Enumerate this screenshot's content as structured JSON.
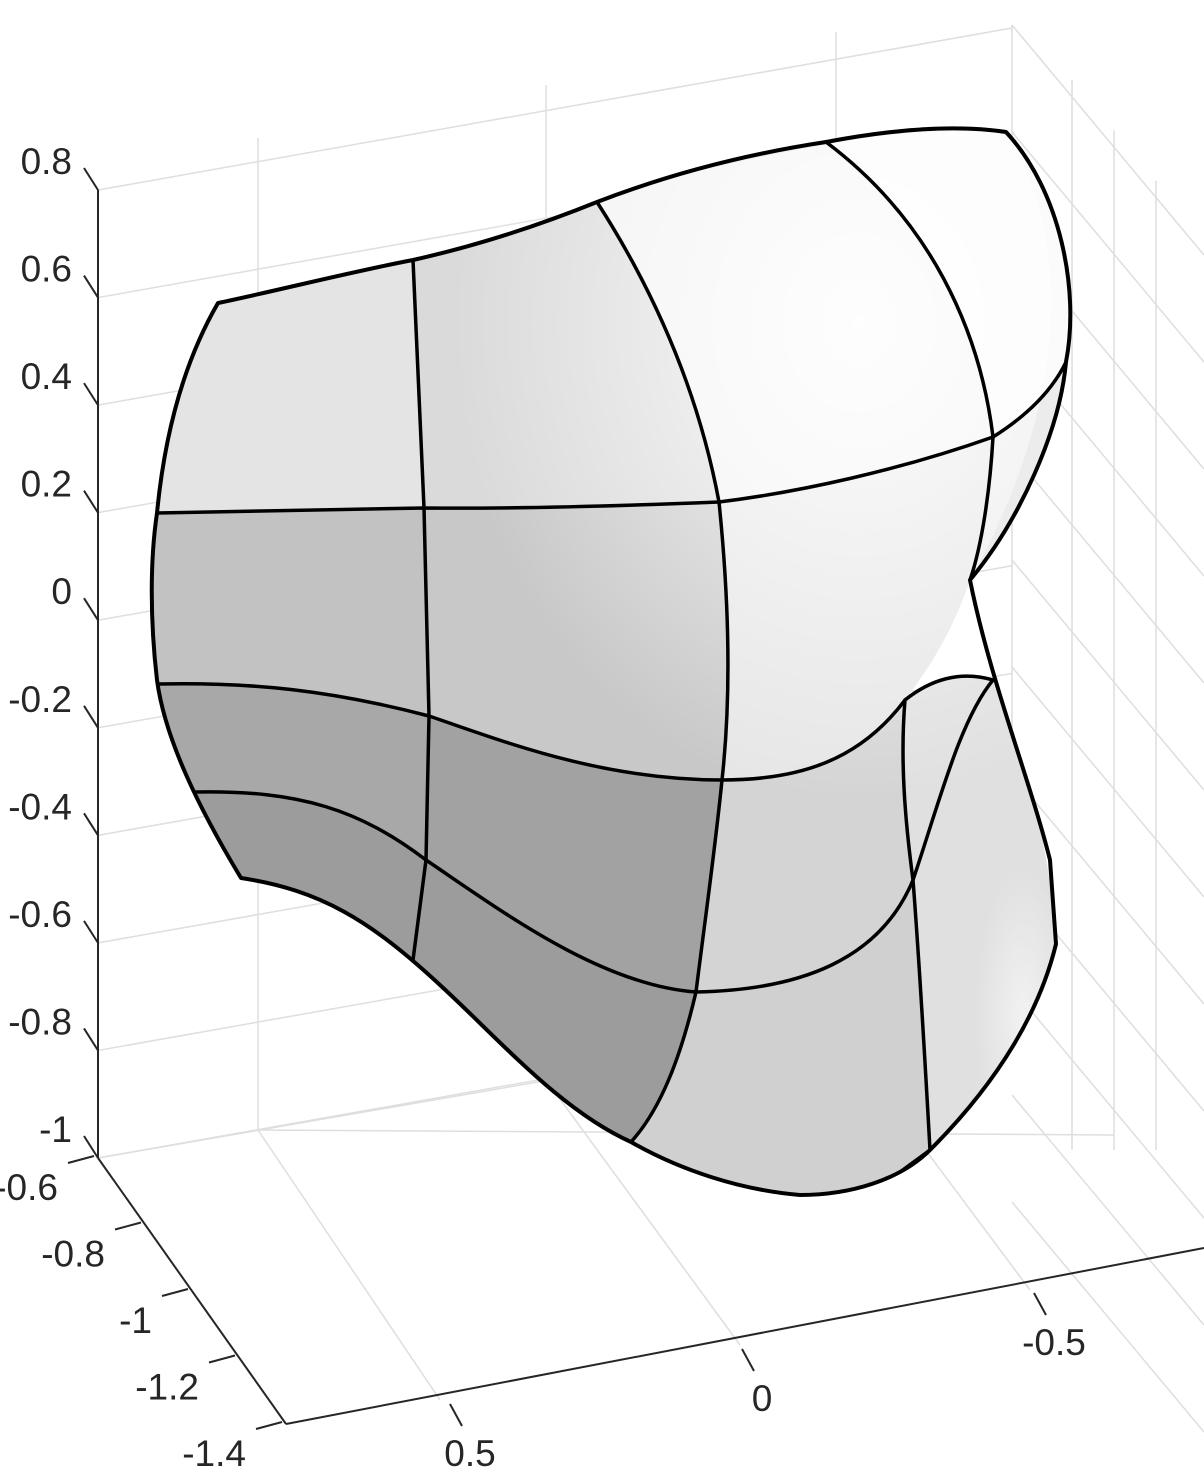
{
  "chart_data": {
    "type": "surface",
    "title": "",
    "xlabel": "",
    "ylabel": "",
    "zlabel": "",
    "surface_color": "#b4b4b4",
    "edge_color": "#000000",
    "grid": true,
    "x_axis": {
      "ticks": [
        {
          "value": 0.5,
          "label": "0.5"
        },
        {
          "value": 0,
          "label": "0"
        },
        {
          "value": -0.5,
          "label": "-0.5"
        }
      ]
    },
    "y_axis": {
      "ticks": [
        {
          "value": -0.6,
          "label": "-0.6"
        },
        {
          "value": -0.8,
          "label": "-0.8"
        },
        {
          "value": -1,
          "label": "-1"
        },
        {
          "value": -1.2,
          "label": "-1.2"
        },
        {
          "value": -1.4,
          "label": "-1.4"
        }
      ]
    },
    "z_axis": {
      "zlim": [
        -1,
        0.8
      ],
      "ticks": [
        {
          "value": 0.8,
          "label": "0.8"
        },
        {
          "value": 0.6,
          "label": "0.6"
        },
        {
          "value": 0.4,
          "label": "0.4"
        },
        {
          "value": 0.2,
          "label": "0.2"
        },
        {
          "value": 0,
          "label": "0"
        },
        {
          "value": -0.2,
          "label": "-0.2"
        },
        {
          "value": -0.4,
          "label": "-0.4"
        },
        {
          "value": -0.6,
          "label": "-0.6"
        },
        {
          "value": -0.8,
          "label": "-0.8"
        },
        {
          "value": -1,
          "label": "-1"
        }
      ]
    },
    "patches": [
      {
        "name": "upper-left",
        "shade": "#e4e4e4"
      },
      {
        "name": "upper-middle",
        "shade": "#dadada"
      },
      {
        "name": "upper-right",
        "shade": "#f2f2f2"
      },
      {
        "name": "cap",
        "shade": "#fbfbfb"
      },
      {
        "name": "middle-left",
        "shade": "#c2c2c2"
      },
      {
        "name": "middle-middle",
        "shade": "#c8c8c8"
      },
      {
        "name": "middle-right",
        "shade": "#e6e6e6"
      },
      {
        "name": "lower-left",
        "shade": "#a8a8a8"
      },
      {
        "name": "lower-middle",
        "shade": "#a2a2a2"
      },
      {
        "name": "lower-right",
        "shade": "#d4d4d4"
      },
      {
        "name": "side-upper",
        "shade": "#ececec"
      },
      {
        "name": "side-lower",
        "shade": "#e0e0e0"
      },
      {
        "name": "bottom-left",
        "shade": "#9c9c9c"
      },
      {
        "name": "bottom-right",
        "shade": "#d0d0d0"
      }
    ]
  }
}
